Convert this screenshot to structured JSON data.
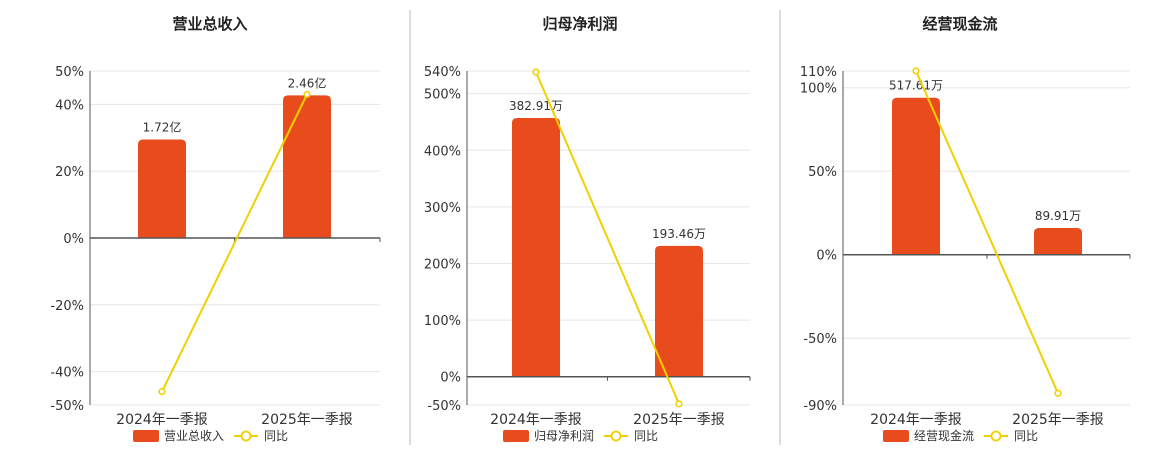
{
  "colors": {
    "bar": "#E84C1C",
    "line": "#F2D000",
    "axis": "#555555",
    "grid": "#E6E6E6",
    "divider": "#BBBBBB"
  },
  "chart_data": [
    {
      "type": "bar",
      "title": "营业总收入",
      "categories": [
        "2024年一季报",
        "2025年一季报"
      ],
      "series": [
        {
          "name": "营业总收入",
          "type": "bar",
          "values": [
            29.5,
            42.7
          ],
          "labels": [
            "1.72亿",
            "2.46亿"
          ]
        },
        {
          "name": "同比",
          "type": "line",
          "values": [
            -46,
            43
          ]
        }
      ],
      "ylim": [
        -50,
        50
      ],
      "yticks": [
        50,
        40,
        20,
        0,
        -20,
        -40,
        -50
      ],
      "ytick_labels": [
        "50%",
        "40%",
        "20%",
        "0%",
        "-20%",
        "-40%",
        "-50%"
      ],
      "legend": "bottom",
      "grid": true
    },
    {
      "type": "bar",
      "title": "归母净利润",
      "categories": [
        "2024年一季报",
        "2025年一季报"
      ],
      "series": [
        {
          "name": "归母净利润",
          "type": "bar",
          "values": [
            457,
            231
          ],
          "labels": [
            "382.91万",
            "193.46万"
          ]
        },
        {
          "name": "同比",
          "type": "line",
          "values": [
            538,
            -48
          ]
        }
      ],
      "ylim": [
        -50,
        540
      ],
      "yticks": [
        540,
        500,
        400,
        300,
        200,
        100,
        0,
        -50
      ],
      "ytick_labels": [
        "540%",
        "500%",
        "400%",
        "300%",
        "200%",
        "100%",
        "0%",
        "-50%"
      ],
      "legend": "bottom",
      "grid": true
    },
    {
      "type": "bar",
      "title": "经营现金流",
      "categories": [
        "2024年一季报",
        "2025年一季报"
      ],
      "series": [
        {
          "name": "经营现金流",
          "type": "bar",
          "values": [
            94,
            16
          ],
          "labels": [
            "517.61万",
            "89.91万"
          ]
        },
        {
          "name": "同比",
          "type": "line",
          "values": [
            110,
            -83
          ]
        }
      ],
      "ylim": [
        -90,
        110
      ],
      "yticks": [
        110,
        100,
        50,
        0,
        -50,
        -90
      ],
      "ytick_labels": [
        "110%",
        "100%",
        "50%",
        "0%",
        "-50%",
        "-90%"
      ],
      "legend": "bottom",
      "grid": true
    }
  ]
}
